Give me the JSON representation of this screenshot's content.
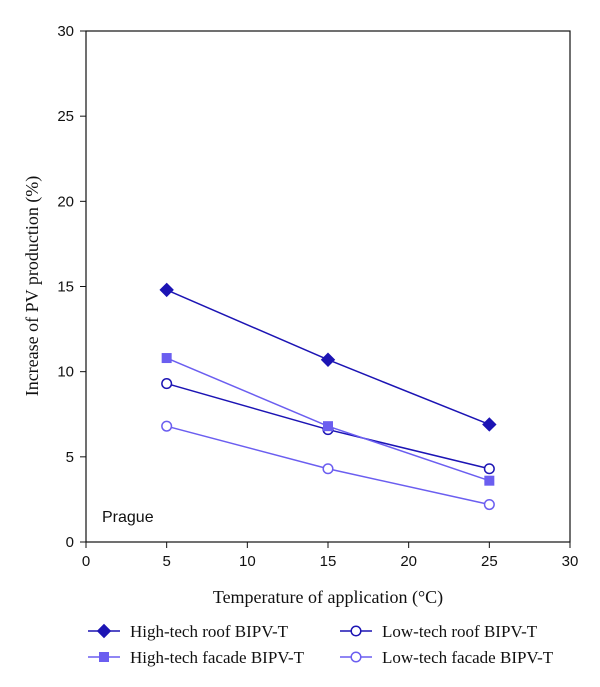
{
  "chart_data": {
    "type": "line",
    "xlabel": "Temperature of application (°C)",
    "ylabel": "Increase of PV production (%)",
    "xlim": [
      0,
      30
    ],
    "ylim": [
      0,
      30
    ],
    "xticks": [
      0,
      5,
      10,
      15,
      20,
      25,
      30
    ],
    "yticks": [
      0,
      5,
      10,
      15,
      20,
      25,
      30
    ],
    "grid": false,
    "legend_position": "bottom",
    "annotation": "Prague",
    "x": [
      5,
      15,
      25
    ],
    "series": [
      {
        "name": "High-tech roof BIPV-T",
        "values": [
          14.8,
          10.7,
          6.9
        ],
        "color": "#1c14b4",
        "marker": "diamond-filled"
      },
      {
        "name": "Low-tech roof BIPV-T",
        "values": [
          9.3,
          6.6,
          4.3
        ],
        "color": "#1c14b4",
        "marker": "circle-open"
      },
      {
        "name": "High-tech facade BIPV-T",
        "values": [
          10.8,
          6.8,
          3.6
        ],
        "color": "#6b5ef0",
        "marker": "square-filled"
      },
      {
        "name": "Low-tech facade BIPV-T",
        "values": [
          6.8,
          4.3,
          2.2
        ],
        "color": "#6b5ef0",
        "marker": "circle-open"
      }
    ]
  }
}
